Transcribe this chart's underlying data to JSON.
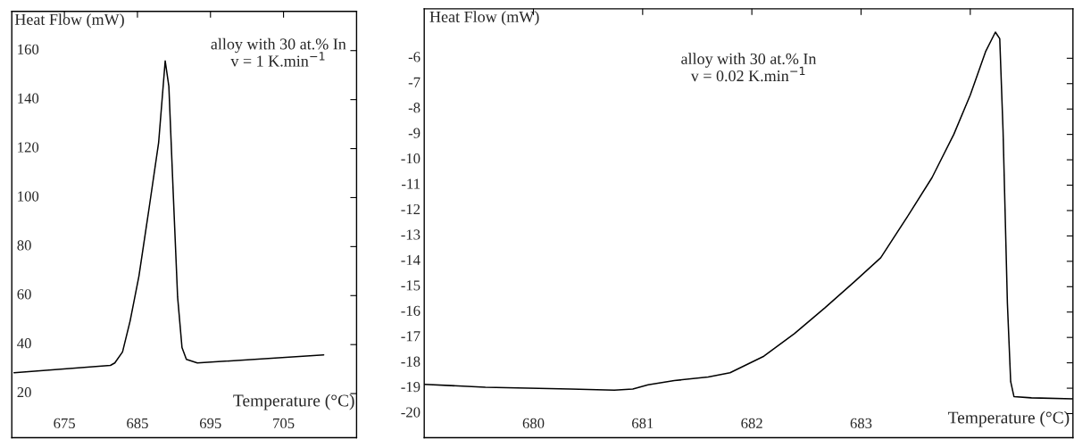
{
  "chart_data": [
    {
      "type": "line",
      "xlabel": "Temperature (°C)",
      "ylabel": "Heat Flow (mW)",
      "annotations": [
        "alloy with 30 at.% In\nv = 1 K.min$^{−1}$"
      ],
      "xlim": [
        667.8,
        715
      ],
      "xticks": [
        675,
        685,
        695,
        705
      ],
      "ylim": [
        2,
        176
      ],
      "yticks": [
        20,
        40,
        60,
        80,
        100,
        120,
        140,
        160
      ],
      "grid": false,
      "marker": "none",
      "line_style": "solid",
      "series": [
        {
          "color": "#000000",
          "x": [
            668.1,
            681.3,
            681.9,
            682.96,
            684.0,
            685.2,
            686.6,
            687.9,
            688.8,
            689.3,
            689.9,
            690.5,
            691.1,
            691.7,
            693.2,
            710.5
          ],
          "values": [
            28.5,
            31.5,
            32.5,
            37.0,
            49.7,
            67.9,
            95.8,
            122.4,
            155.8,
            145.5,
            101.8,
            59.4,
            38.8,
            34.0,
            32.5,
            35.8
          ]
        }
      ]
    },
    {
      "type": "line",
      "xlabel": "Temperature (°C)",
      "ylabel": "Heat Flow (mW)",
      "annotations": [
        "alloy with 30 at.% In\nv = 0.02 K.min$^{−1}$"
      ],
      "xlim": [
        679.0,
        684.94
      ],
      "xticks": [
        680,
        681,
        682,
        683,
        {
          "value": 684,
          "label": null
        }
      ],
      "ylim": [
        -20.95,
        -4.05
      ],
      "yticks": [
        -20,
        -19,
        -18,
        -17,
        -16,
        -15,
        -14,
        -13,
        -12,
        -11,
        -10,
        -9,
        -8,
        -7,
        -6
      ],
      "grid": false,
      "marker": "none",
      "line_style": "solid",
      "series": [
        {
          "color": "#000000",
          "x": [
            679.0,
            679.56,
            680.34,
            680.74,
            680.91,
            681.05,
            681.29,
            681.6,
            681.8,
            682.11,
            682.39,
            682.67,
            682.94,
            683.18,
            683.45,
            683.65,
            683.85,
            684.0,
            684.14,
            684.23,
            684.27,
            684.3,
            684.34,
            684.37,
            684.4,
            684.56,
            684.94
          ],
          "values": [
            -18.85,
            -18.96,
            -19.03,
            -19.08,
            -19.03,
            -18.87,
            -18.7,
            -18.56,
            -18.39,
            -17.74,
            -16.85,
            -15.83,
            -14.8,
            -13.86,
            -12.07,
            -10.7,
            -8.99,
            -7.45,
            -5.74,
            -4.97,
            -5.23,
            -8.82,
            -15.66,
            -18.74,
            -19.33,
            -19.38,
            -19.42
          ]
        }
      ]
    }
  ]
}
